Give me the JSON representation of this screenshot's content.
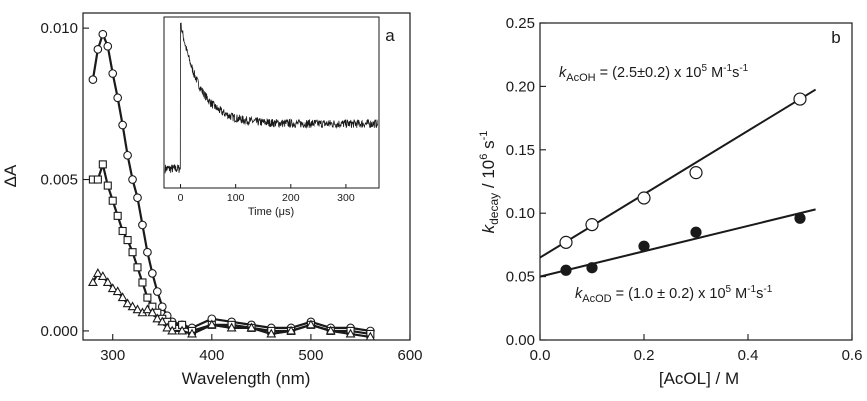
{
  "chart_data": [
    {
      "type": "line",
      "panel_label": "a",
      "xlabel": "Wavelength (nm)",
      "ylabel": "ΔA",
      "xlim": [
        270,
        600
      ],
      "ylim": [
        -0.0003,
        0.0105
      ],
      "x_ticks": [
        300,
        400,
        500,
        600
      ],
      "x_tick_labels": [
        "300",
        "400",
        "500",
        "600"
      ],
      "y_ticks": [
        0.0,
        0.005,
        0.01
      ],
      "y_tick_labels": [
        "0.000",
        "0.005",
        "0.010"
      ],
      "grid": false,
      "series": [
        {
          "marker": "circle",
          "x": [
            280,
            285,
            290,
            295,
            300,
            305,
            310,
            315,
            320,
            325,
            330,
            335,
            340,
            345,
            350,
            355,
            360,
            370,
            380,
            400,
            420,
            440,
            460,
            480,
            500,
            520,
            540,
            560
          ],
          "y": [
            0.0083,
            0.0093,
            0.0098,
            0.0094,
            0.0085,
            0.0077,
            0.0068,
            0.0058,
            0.005,
            0.0044,
            0.0035,
            0.0026,
            0.0019,
            0.0013,
            0.0008,
            0.0005,
            0.0003,
            0.0002,
            0.0001,
            0.0004,
            0.0003,
            0.0002,
            0.0001,
            0.0001,
            0.0003,
            0.0001,
            0.0001,
            0.0
          ]
        },
        {
          "marker": "square",
          "x": [
            280,
            285,
            290,
            295,
            300,
            305,
            310,
            315,
            320,
            325,
            330,
            335,
            340,
            345,
            350,
            355,
            360,
            370,
            380,
            400,
            420,
            440,
            460,
            480,
            500,
            520,
            540,
            560
          ],
          "y": [
            0.005,
            0.005,
            0.0055,
            0.0048,
            0.0043,
            0.0038,
            0.0033,
            0.003,
            0.0026,
            0.0021,
            0.0016,
            0.0011,
            0.0008,
            0.0006,
            0.0004,
            0.0003,
            0.0002,
            0.0002,
            0.0,
            0.0002,
            0.0002,
            0.0001,
            0.0,
            0.0,
            0.0002,
            0.0,
            0.0,
            -0.0001
          ]
        },
        {
          "marker": "triangle",
          "x": [
            280,
            285,
            290,
            295,
            300,
            305,
            310,
            315,
            320,
            325,
            330,
            335,
            340,
            345,
            350,
            355,
            360,
            370,
            380,
            400,
            420,
            440,
            460,
            480,
            500,
            520,
            540,
            560
          ],
          "y": [
            0.0016,
            0.0019,
            0.0018,
            0.0016,
            0.0014,
            0.0013,
            0.0011,
            0.0009,
            0.0008,
            0.0007,
            0.0006,
            0.0007,
            0.0006,
            0.0004,
            0.0003,
            0.0001,
            0.0,
            0.0,
            -0.0001,
            0.0002,
            0.0001,
            0.0001,
            -0.0001,
            0.0,
            0.0002,
            0.0,
            -0.0001,
            -0.0002
          ]
        }
      ],
      "inset": {
        "type": "line",
        "xlabel": "Time (μs)",
        "ylabel": "",
        "xlim": [
          -30,
          360
        ],
        "x_ticks": [
          0,
          100,
          200,
          300
        ],
        "x_tick_labels": [
          "0",
          "100",
          "200",
          "300"
        ],
        "baseline_before_zero": 0.06,
        "peak_at_zero": 1.0,
        "decay_time_constant_us": 35,
        "plateau": 0.35
      }
    },
    {
      "type": "scatter",
      "panel_label": "b",
      "xlabel": "[AcOL] / M",
      "ylabel_main": "k",
      "ylabel_sub": "decay",
      "ylabel_tail": " / 10",
      "ylabel_sup": "6",
      "ylabel_unit": " s",
      "ylabel_unit_sup": "-1",
      "xlim": [
        0.0,
        0.6
      ],
      "ylim": [
        0.0,
        0.25
      ],
      "x_ticks": [
        0.0,
        0.2,
        0.4,
        0.6
      ],
      "x_tick_labels": [
        "0.0",
        "0.2",
        "0.4",
        "0.6"
      ],
      "y_ticks": [
        0.0,
        0.05,
        0.1,
        0.15,
        0.2,
        0.25
      ],
      "y_tick_labels": [
        "0.00",
        "0.05",
        "0.10",
        "0.15",
        "0.20",
        "0.25"
      ],
      "grid": false,
      "series": [
        {
          "marker": "open-circle",
          "x": [
            0.05,
            0.1,
            0.2,
            0.3,
            0.5
          ],
          "y": [
            0.077,
            0.091,
            0.112,
            0.132,
            0.19
          ],
          "fit": {
            "intercept": 0.065,
            "slope": 0.25,
            "x_range": [
              0.0,
              0.53
            ]
          },
          "annotation": {
            "k": "k",
            "sub": "AcOH",
            "text": " = (2.5±0.2) x 10",
            "sup1": "5",
            "unit1": " M",
            "sup2": "-1",
            "unit2": "s",
            "sup3": "-1"
          }
        },
        {
          "marker": "filled-circle",
          "x": [
            0.05,
            0.1,
            0.2,
            0.3,
            0.5
          ],
          "y": [
            0.055,
            0.057,
            0.074,
            0.085,
            0.096
          ],
          "fit": {
            "intercept": 0.05,
            "slope": 0.1,
            "x_range": [
              0.0,
              0.53
            ]
          },
          "annotation": {
            "k": "k",
            "sub": "AcOD",
            "text": " = (1.0 ± 0.2) x 10",
            "sup1": "5",
            "unit1": " M",
            "sup2": "-1",
            "unit2": "s",
            "sup3": "-1"
          }
        }
      ]
    }
  ],
  "colors": {
    "ink": "#1a1a1a",
    "background": "#ffffff"
  }
}
